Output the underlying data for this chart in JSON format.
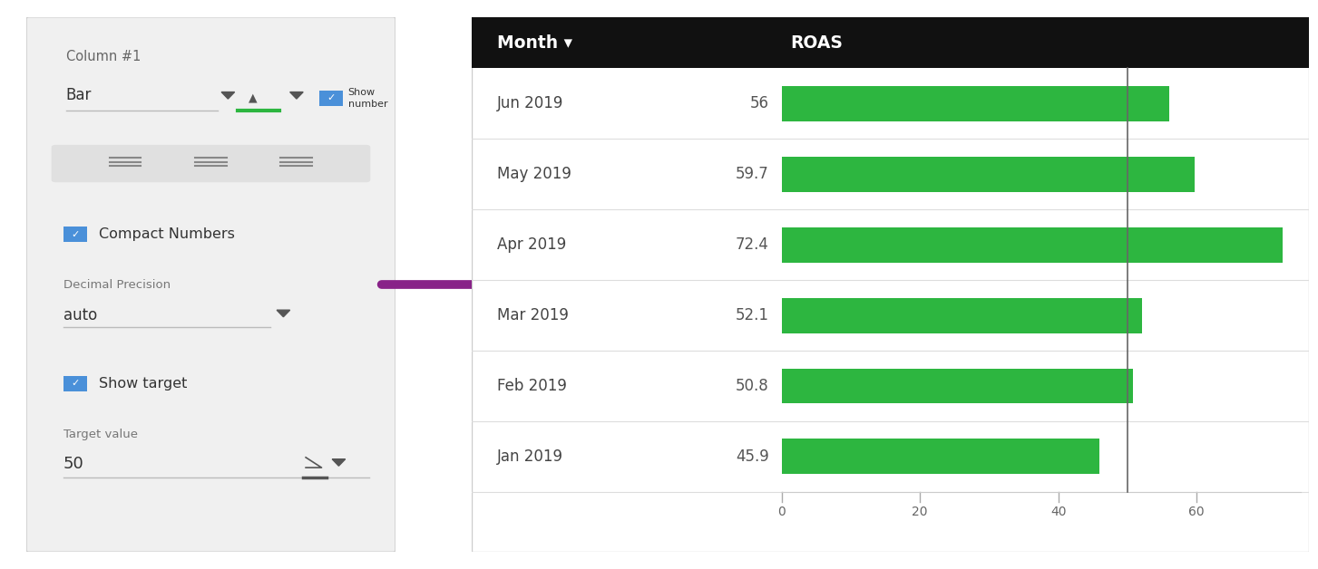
{
  "months": [
    "Jun 2019",
    "May 2019",
    "Apr 2019",
    "Mar 2019",
    "Feb 2019",
    "Jan 2019"
  ],
  "values": [
    56,
    59.7,
    72.4,
    52.1,
    50.8,
    45.9
  ],
  "bar_color": "#2db640",
  "target_line": 50,
  "header_bg": "#111111",
  "header_month": "Month ▾",
  "header_roas": "ROAS",
  "x_ticks": [
    0,
    20,
    40,
    60
  ],
  "x_max": 75,
  "panel_bg": "#f0f0f0",
  "panel_title": "Column #1",
  "bar_label": "Bar",
  "compact_label": "Compact Numbers",
  "decimal_label": "Decimal Precision",
  "auto_label": "auto",
  "show_target_label": "Show target",
  "target_value_label": "Target value",
  "target_value": "50",
  "show_number_label": "Show\nnumber",
  "arrow_color": "#882288",
  "table_bg": "#ffffff",
  "row_line_color": "#dddddd",
  "target_line_color": "#666666",
  "checkbox_blue": "#4a90d9",
  "outer_bg": "#ffffff"
}
